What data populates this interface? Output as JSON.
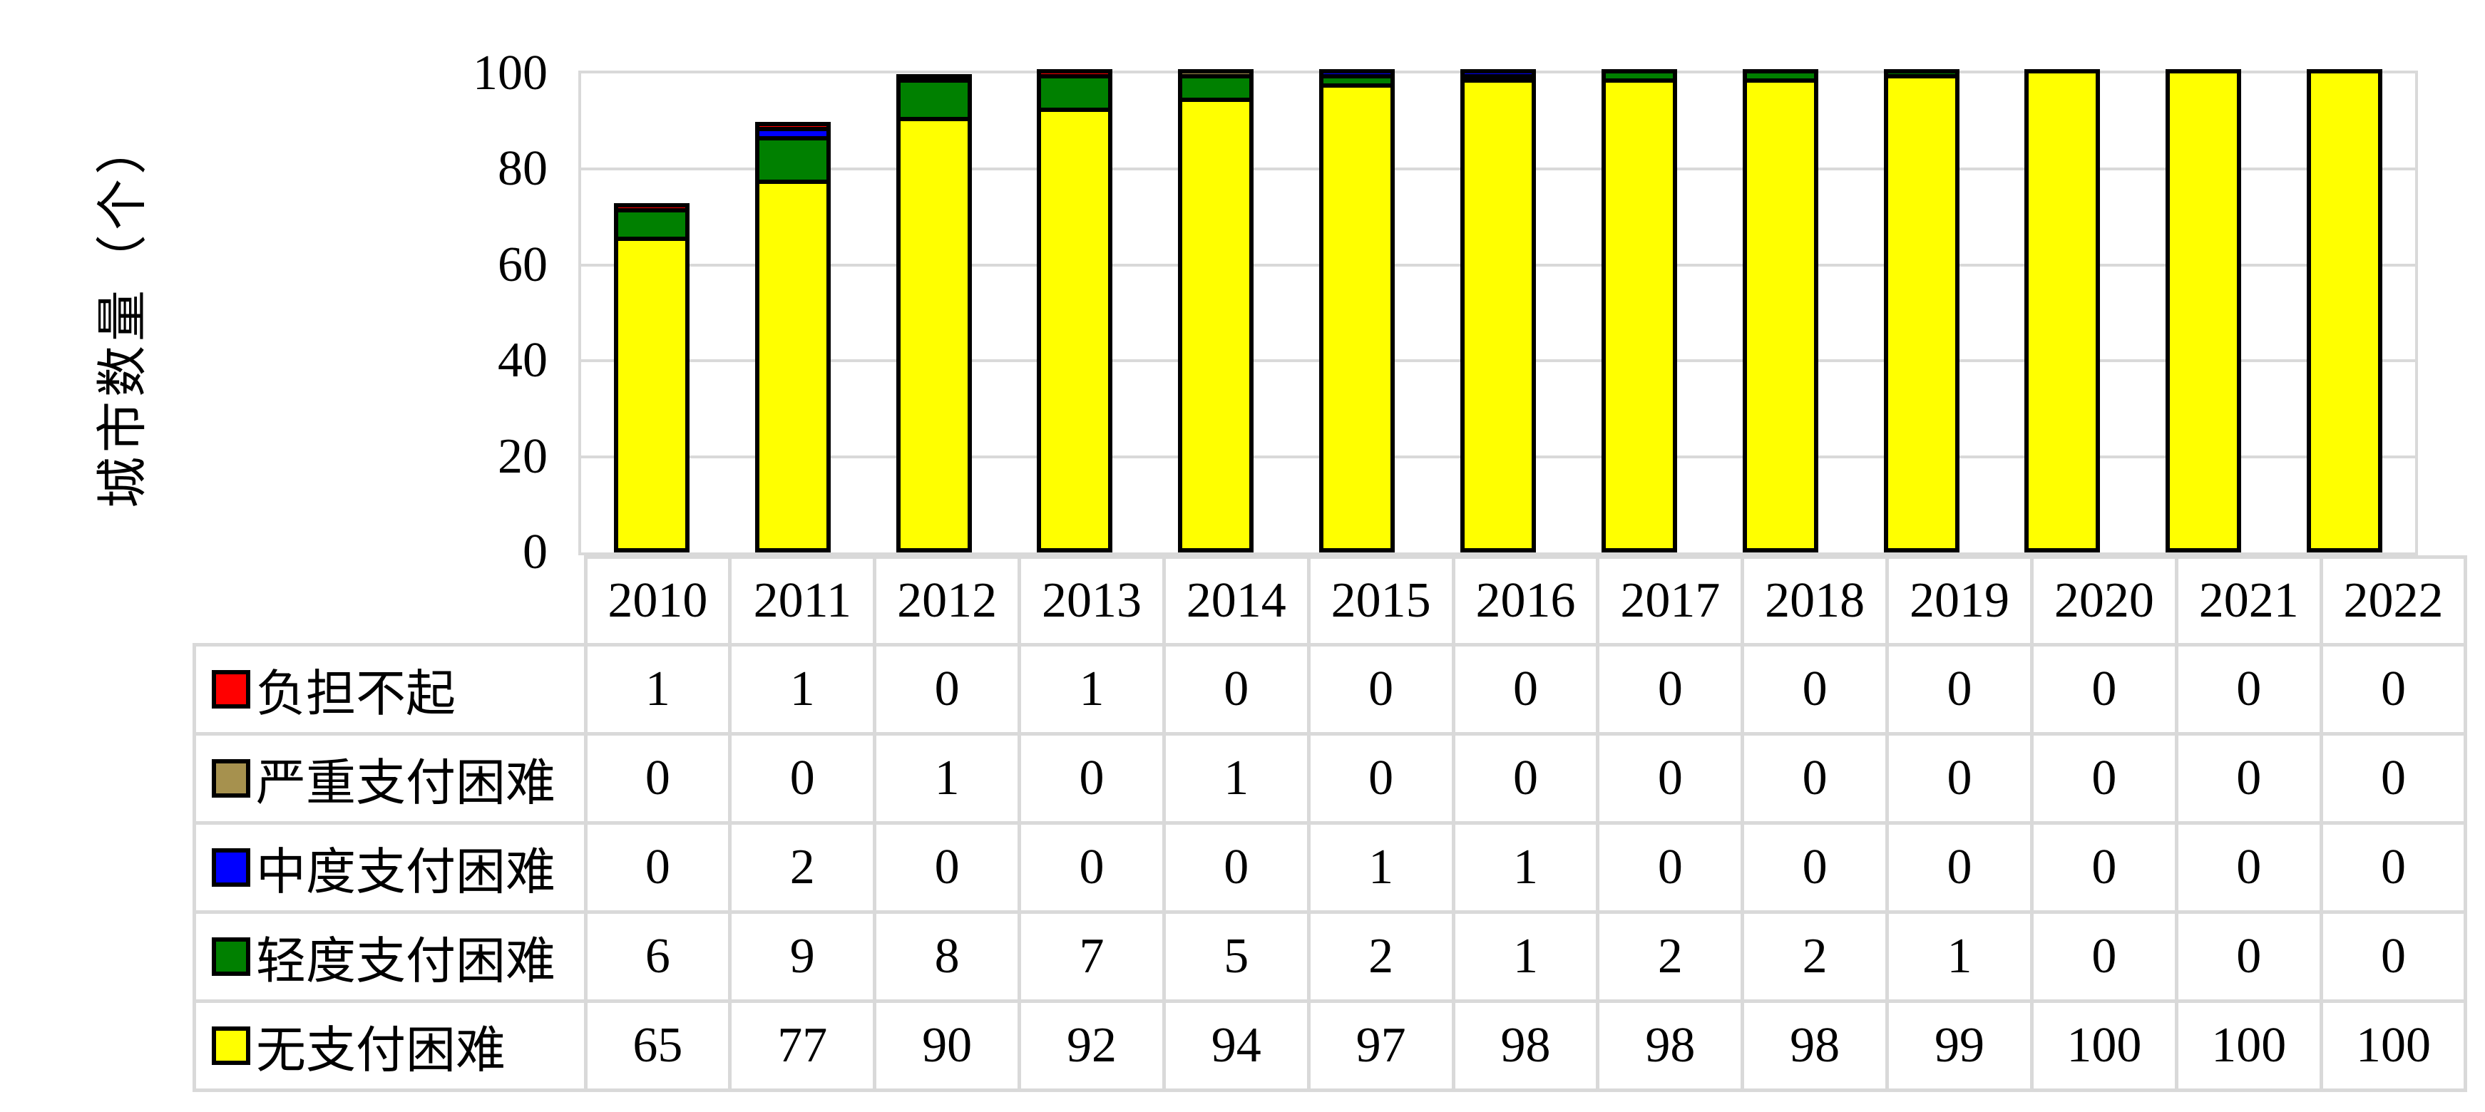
{
  "chart_data": {
    "type": "bar",
    "stacked": true,
    "title": "",
    "ylabel": "城市数量（个）",
    "xlabel": "",
    "ylim": [
      0,
      100
    ],
    "yticks": [
      100,
      80,
      60,
      40,
      20,
      0
    ],
    "grid": true,
    "legend_position": "data-table-left-column",
    "categories": [
      "2010",
      "2011",
      "2012",
      "2013",
      "2014",
      "2015",
      "2016",
      "2017",
      "2018",
      "2019",
      "2020",
      "2021",
      "2022"
    ],
    "series": [
      {
        "name": "负担不起",
        "color": "#FF0000",
        "values": [
          1,
          1,
          0,
          1,
          0,
          0,
          0,
          0,
          0,
          0,
          0,
          0,
          0
        ]
      },
      {
        "name": "严重支付困难",
        "color": "#A6914E",
        "values": [
          0,
          0,
          1,
          0,
          1,
          0,
          0,
          0,
          0,
          0,
          0,
          0,
          0
        ]
      },
      {
        "name": "中度支付困难",
        "color": "#0000FF",
        "values": [
          0,
          2,
          0,
          0,
          0,
          1,
          1,
          0,
          0,
          0,
          0,
          0,
          0
        ]
      },
      {
        "name": "轻度支付困难",
        "color": "#008000",
        "values": [
          6,
          9,
          8,
          7,
          5,
          2,
          1,
          2,
          2,
          1,
          0,
          0,
          0
        ]
      },
      {
        "name": "无支付困难",
        "color": "#FFFF00",
        "values": [
          65,
          77,
          90,
          92,
          94,
          97,
          98,
          98,
          98,
          99,
          100,
          100,
          100
        ]
      }
    ],
    "stack_order_bottom_to_top": [
      "无支付困难",
      "轻度支付困难",
      "中度支付困难",
      "严重支付困难",
      "负担不起"
    ],
    "colors": {
      "bar_border": "#000000",
      "gridline": "#D9D9D9",
      "table_border": "#D9D9D9",
      "background": "#FFFFFF",
      "text": "#000000"
    }
  }
}
